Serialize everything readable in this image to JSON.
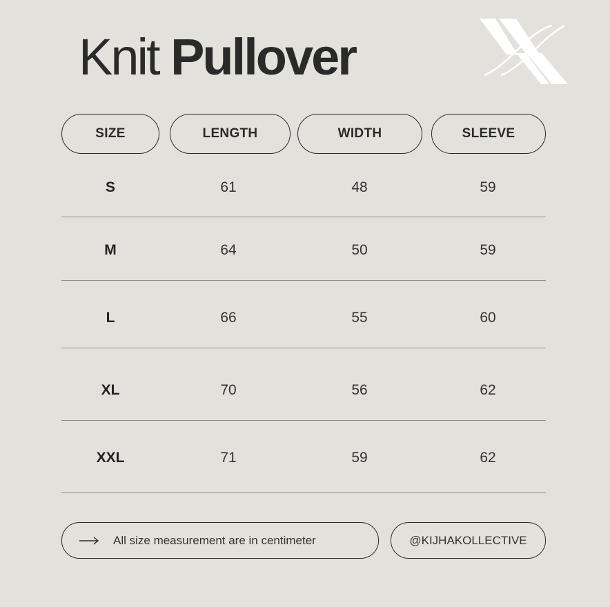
{
  "title": {
    "light": "Knit",
    "bold": "Pullover"
  },
  "logo": {
    "icon": "kx-monogram-logo",
    "color": "#ffffff"
  },
  "headers": [
    "SIZE",
    "LENGTH",
    "WIDTH",
    "SLEEVE"
  ],
  "rows": [
    [
      "S",
      "61",
      "48",
      "59"
    ],
    [
      "M",
      "64",
      "50",
      "59"
    ],
    [
      "L",
      "66",
      "55",
      "60"
    ],
    [
      "XL",
      "70",
      "56",
      "62"
    ],
    [
      "XXL",
      "71",
      "59",
      "62"
    ]
  ],
  "footer": {
    "note_icon": "arrow-right-icon",
    "note": "All size measurement are in centimeter",
    "handle": "@KIJHAKOLLECTIVE"
  },
  "colors": {
    "background": "#e3e1dc",
    "ink": "#2a2a2a"
  }
}
